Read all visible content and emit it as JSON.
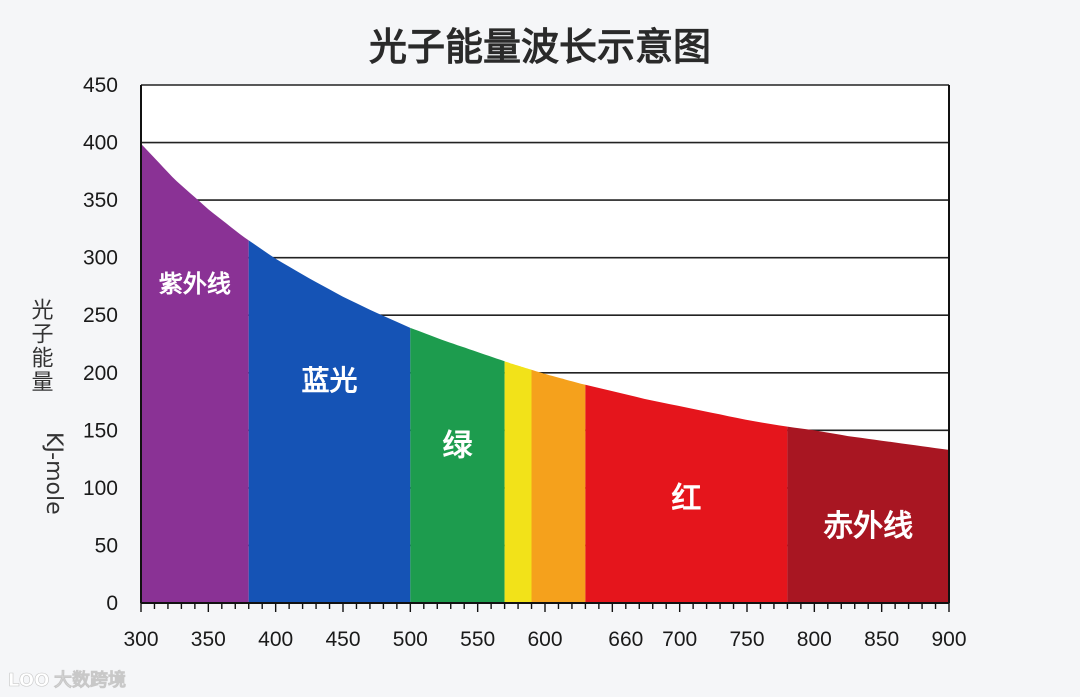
{
  "chart_data": {
    "type": "area",
    "title": "光子能量波长示意图",
    "xlabel": "",
    "ylabel": "光子能量",
    "yunit": "KJ-mole",
    "xlim": [
      300,
      900
    ],
    "ylim": [
      0,
      450
    ],
    "x_ticks": [
      300,
      350,
      400,
      450,
      500,
      550,
      600,
      660,
      700,
      750,
      800,
      850,
      900
    ],
    "y_ticks": [
      0,
      50,
      100,
      150,
      200,
      250,
      300,
      350,
      400,
      450
    ],
    "grid": "horizontal",
    "curve": {
      "x": [
        300,
        325,
        350,
        375,
        400,
        425,
        450,
        475,
        500,
        525,
        550,
        575,
        600,
        625,
        650,
        675,
        700,
        725,
        750,
        775,
        800,
        825,
        850,
        875,
        900
      ],
      "y": [
        399,
        368,
        342,
        319,
        299,
        282,
        266,
        252,
        239,
        228,
        218,
        208,
        199,
        191,
        184,
        177,
        171,
        165,
        159,
        154,
        150,
        145,
        141,
        137,
        133
      ]
    },
    "regions": [
      {
        "label": "紫外线",
        "start": 300,
        "end": 380,
        "color": "#8a3295",
        "label_y": 270,
        "label_size": 24
      },
      {
        "label": "蓝光",
        "start": 380,
        "end": 500,
        "color": "#1553b5",
        "label_y": 185,
        "label_size": 28
      },
      {
        "label": "绿",
        "start": 500,
        "end": 570,
        "color": "#1d9c4e",
        "label_y": 128,
        "label_size": 30
      },
      {
        "label": "",
        "start": 570,
        "end": 590,
        "color": "#f2e219",
        "label_y": 0,
        "label_size": 0
      },
      {
        "label": "",
        "start": 590,
        "end": 630,
        "color": "#f5a11c",
        "label_y": 0,
        "label_size": 0
      },
      {
        "label": "红",
        "start": 630,
        "end": 780,
        "color": "#e5151c",
        "label_y": 82,
        "label_size": 30
      },
      {
        "label": "赤外线",
        "start": 780,
        "end": 900,
        "color": "#a81622",
        "label_y": 58,
        "label_size": 30
      }
    ]
  },
  "watermark": {
    "logo_text": "LOO",
    "text": "大数跨境"
  },
  "colors": {
    "grid": "#222222",
    "axis": "#111111",
    "background": "#f5f6f8",
    "plot_background": "#ffffff"
  }
}
